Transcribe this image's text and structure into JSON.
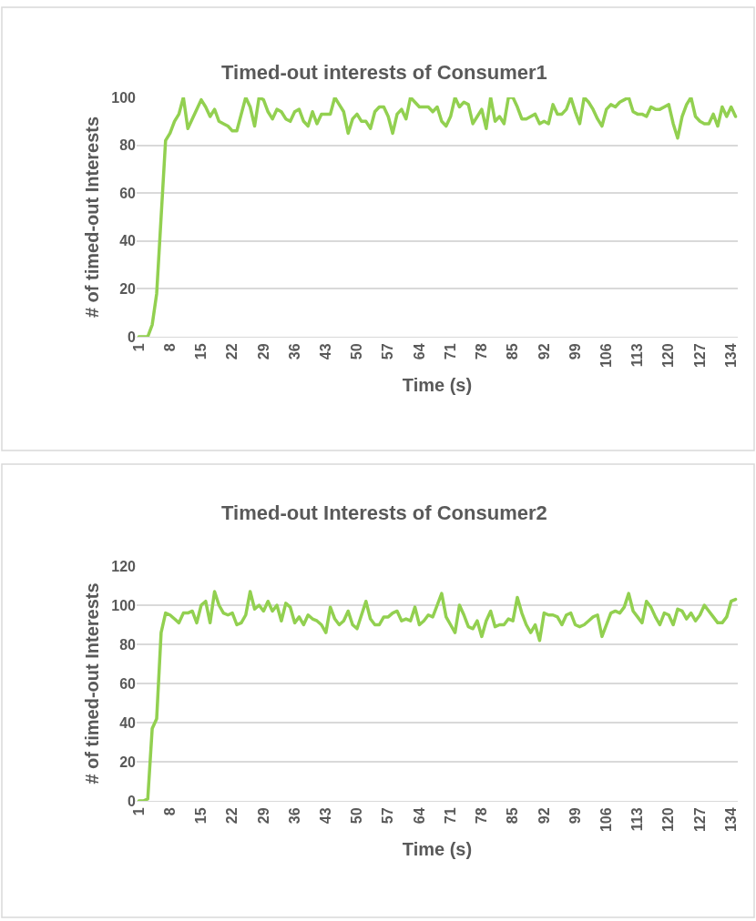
{
  "chart_data": [
    {
      "type": "line",
      "title": "Timed-out interests of Consumer1",
      "xlabel": "Time (s)",
      "ylabel": "# of timed-out Interests",
      "categories": [
        "1",
        null,
        null,
        null,
        null,
        null,
        null,
        "8",
        null,
        null,
        null,
        null,
        null,
        null,
        "15",
        null,
        null,
        null,
        null,
        null,
        null,
        "22",
        null,
        null,
        null,
        null,
        null,
        null,
        "29",
        null,
        null,
        null,
        null,
        null,
        null,
        "36",
        null,
        null,
        null,
        null,
        null,
        null,
        "43",
        null,
        null,
        null,
        null,
        null,
        null,
        "50",
        null,
        null,
        null,
        null,
        null,
        null,
        "57",
        null,
        null,
        null,
        null,
        null,
        null,
        "64",
        null,
        null,
        null,
        null,
        null,
        null,
        "71",
        null,
        null,
        null,
        null,
        null,
        null,
        "78",
        null,
        null,
        null,
        null,
        null,
        null,
        "85",
        null,
        null,
        null,
        null,
        null,
        null,
        "92",
        null,
        null,
        null,
        null,
        null,
        null,
        "99",
        null,
        null,
        null,
        null,
        null,
        null,
        "106",
        null,
        null,
        null,
        null,
        null,
        null,
        "113",
        null,
        null,
        null,
        null,
        null,
        null,
        "120",
        null,
        null,
        null,
        null,
        null,
        null,
        "127",
        null,
        null,
        null,
        null,
        null,
        null,
        "134",
        null
      ],
      "ylim": [
        0,
        100
      ],
      "yticks": [
        0,
        20,
        40,
        60,
        80,
        100
      ],
      "grid": "y",
      "series": [
        {
          "color": "#92d050",
          "values": [
            0,
            0,
            0,
            5,
            18,
            50,
            82,
            85,
            90,
            93,
            100,
            87,
            91,
            95,
            99,
            96,
            92,
            95,
            90,
            89,
            88,
            86,
            86,
            93,
            100,
            96,
            88,
            100,
            99,
            94,
            91,
            95,
            94,
            91,
            90,
            94,
            95,
            90,
            88,
            94,
            89,
            93,
            93,
            93,
            100,
            97,
            94,
            85,
            91,
            93,
            90,
            90,
            87,
            94,
            96,
            96,
            92,
            85,
            93,
            95,
            91,
            100,
            98,
            96,
            96,
            96,
            94,
            96,
            90,
            88,
            92,
            100,
            96,
            98,
            97,
            89,
            92,
            95,
            87,
            100,
            90,
            92,
            89,
            100,
            100,
            96,
            91,
            91,
            92,
            93,
            89,
            90,
            89,
            97,
            93,
            93,
            95,
            100,
            94,
            89,
            100,
            98,
            95,
            91,
            88,
            95,
            97,
            96,
            98,
            99,
            100,
            94,
            93,
            93,
            92,
            96,
            95,
            95,
            96,
            97,
            89,
            83,
            92,
            97,
            100,
            92,
            90,
            89,
            89,
            93,
            88,
            96,
            92,
            96,
            92
          ]
        }
      ]
    },
    {
      "type": "line",
      "title": "Timed-out Interests of Consumer2",
      "xlabel": "Time (s)",
      "ylabel": "# of timed-out Interests",
      "categories": [
        "1",
        null,
        null,
        null,
        null,
        null,
        null,
        "8",
        null,
        null,
        null,
        null,
        null,
        null,
        "15",
        null,
        null,
        null,
        null,
        null,
        null,
        "22",
        null,
        null,
        null,
        null,
        null,
        null,
        "29",
        null,
        null,
        null,
        null,
        null,
        null,
        "36",
        null,
        null,
        null,
        null,
        null,
        null,
        "43",
        null,
        null,
        null,
        null,
        null,
        null,
        "50",
        null,
        null,
        null,
        null,
        null,
        null,
        "57",
        null,
        null,
        null,
        null,
        null,
        null,
        "64",
        null,
        null,
        null,
        null,
        null,
        null,
        "71",
        null,
        null,
        null,
        null,
        null,
        null,
        "78",
        null,
        null,
        null,
        null,
        null,
        null,
        "85",
        null,
        null,
        null,
        null,
        null,
        null,
        "92",
        null,
        null,
        null,
        null,
        null,
        null,
        "99",
        null,
        null,
        null,
        null,
        null,
        null,
        "106",
        null,
        null,
        null,
        null,
        null,
        null,
        "113",
        null,
        null,
        null,
        null,
        null,
        null,
        "120",
        null,
        null,
        null,
        null,
        null,
        null,
        "127",
        null,
        null,
        null,
        null,
        null,
        null,
        "134",
        null
      ],
      "ylim": [
        0,
        120
      ],
      "yticks": [
        0,
        20,
        40,
        60,
        80,
        100,
        120
      ],
      "grid": "y",
      "series": [
        {
          "color": "#92d050",
          "values": [
            0,
            0,
            1,
            37,
            42,
            86,
            96,
            95,
            93,
            91,
            96,
            96,
            97,
            91,
            100,
            102,
            91,
            107,
            100,
            96,
            95,
            96,
            90,
            91,
            95,
            107,
            98,
            100,
            97,
            102,
            97,
            100,
            92,
            101,
            99,
            91,
            94,
            90,
            95,
            93,
            92,
            90,
            86,
            99,
            93,
            90,
            92,
            97,
            90,
            88,
            95,
            102,
            93,
            90,
            90,
            94,
            94,
            96,
            97,
            92,
            93,
            92,
            99,
            90,
            92,
            95,
            94,
            100,
            106,
            94,
            90,
            86,
            100,
            95,
            89,
            88,
            92,
            84,
            92,
            97,
            89,
            90,
            90,
            93,
            92,
            104,
            96,
            90,
            86,
            90,
            82,
            96,
            95,
            95,
            94,
            90,
            95,
            96,
            90,
            89,
            90,
            92,
            94,
            95,
            84,
            90,
            96,
            97,
            96,
            99,
            106,
            97,
            94,
            91,
            102,
            99,
            94,
            90,
            96,
            95,
            90,
            98,
            97,
            93,
            96,
            92,
            95,
            100,
            97,
            94,
            91,
            91,
            94,
            102,
            103
          ]
        }
      ]
    }
  ]
}
